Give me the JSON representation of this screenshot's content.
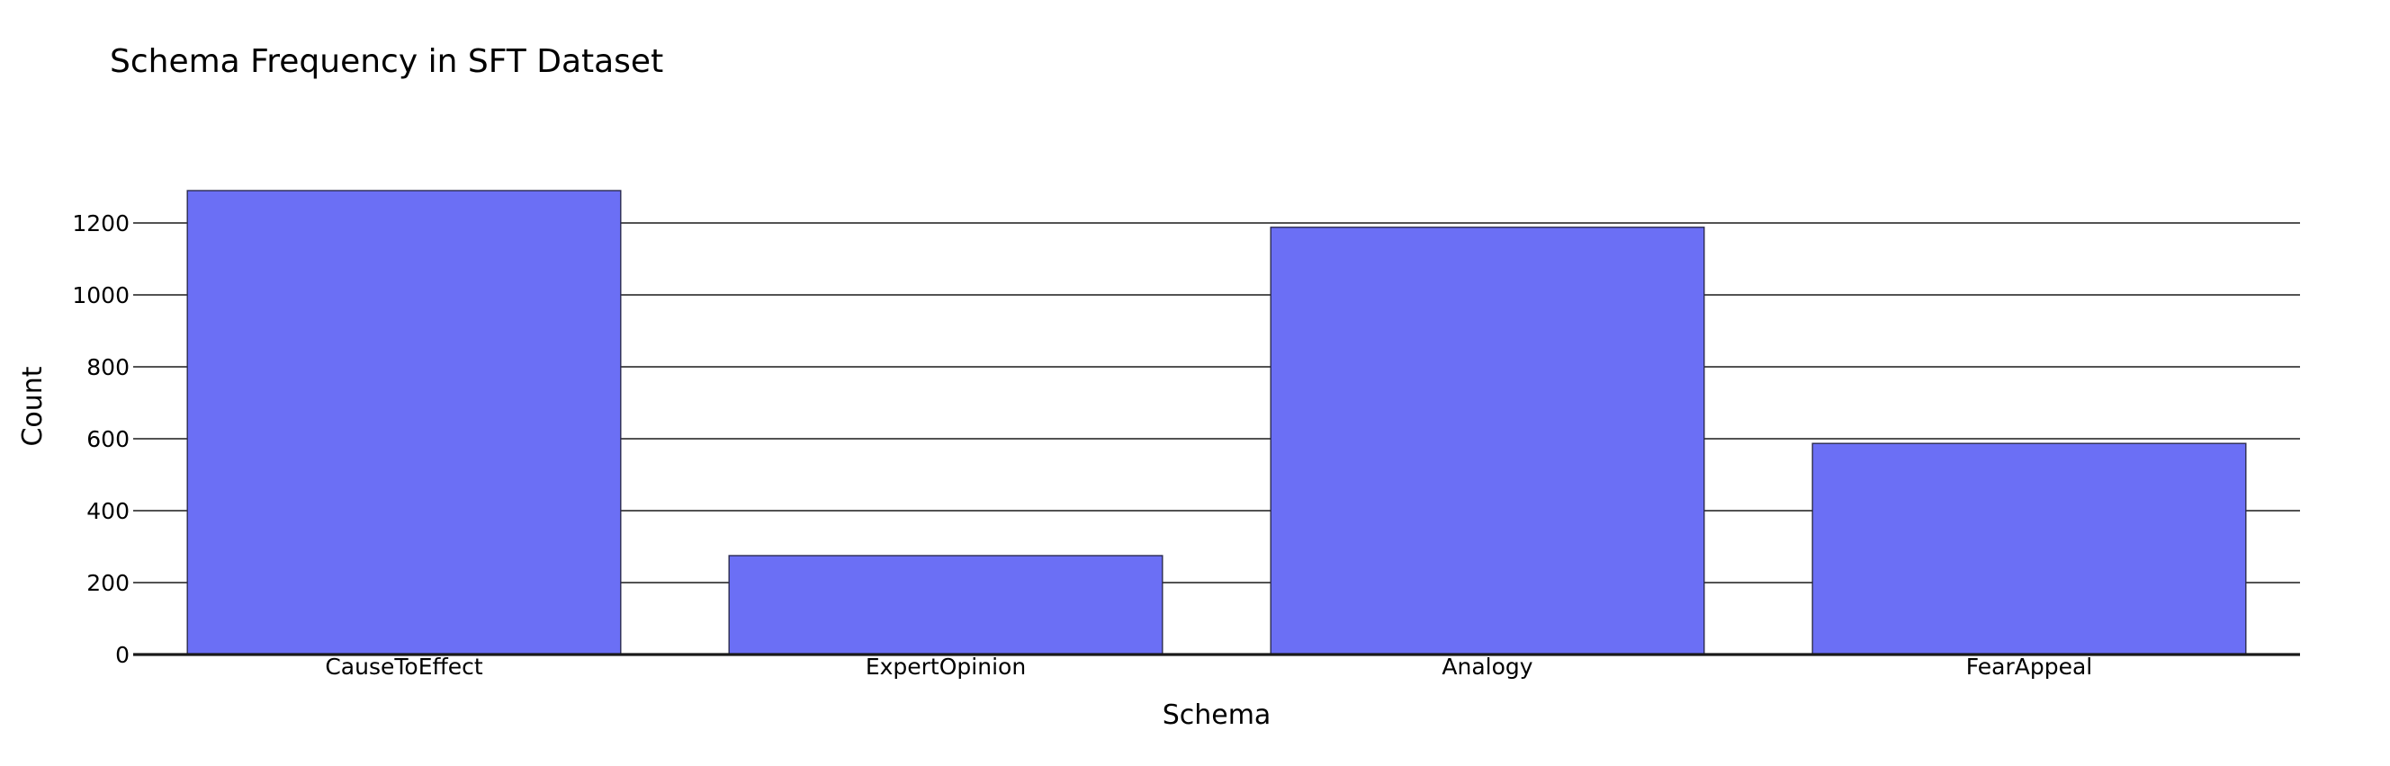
{
  "chart_data": {
    "type": "bar",
    "title": "Schema Frequency in SFT Dataset",
    "xlabel": "Schema",
    "ylabel": "Count",
    "categories": [
      "CauseToEffect",
      "ExpertOpinion",
      "Analogy",
      "FearAppeal"
    ],
    "values": [
      1290,
      275,
      1188,
      587
    ],
    "ylim": [
      0,
      1400
    ],
    "yticks": [
      0,
      200,
      400,
      600,
      800,
      1000,
      1200
    ],
    "bar_color": "#6b6ff5",
    "grid": true,
    "legend": "none"
  }
}
